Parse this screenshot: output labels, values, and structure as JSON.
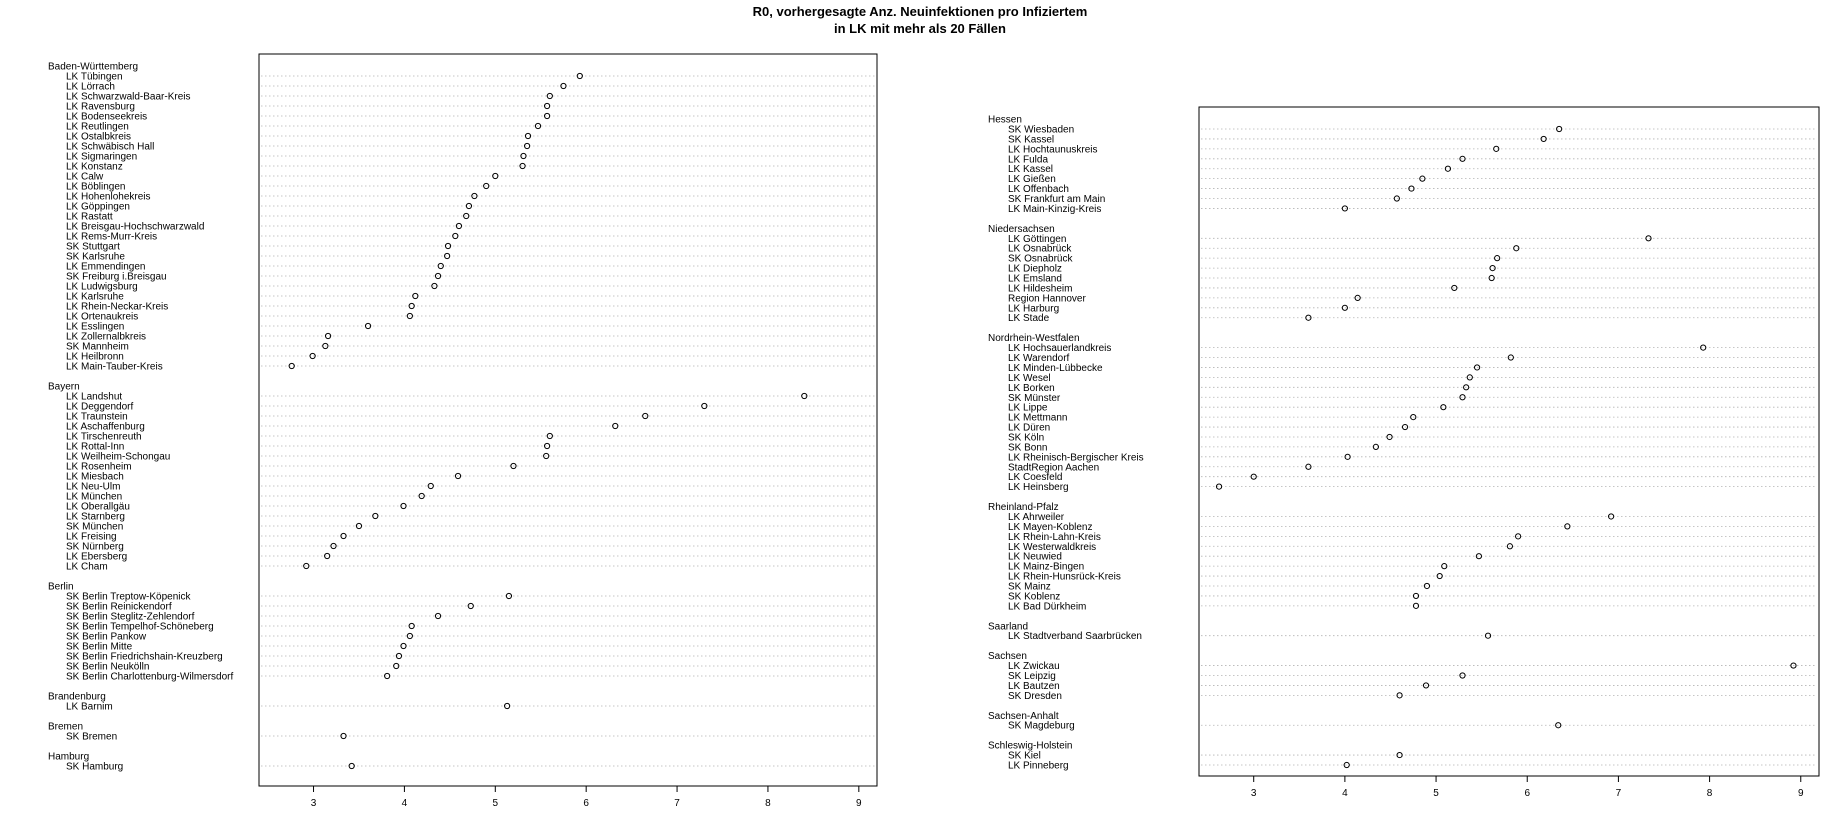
{
  "title_lines": [
    "R0, vorhergesagte Anz. Neuinfektionen pro Infiziertem",
    "in LK mit mehr als 20 Fällen"
  ],
  "chart_data": [
    {
      "type": "dotchart",
      "xlim": [
        2.4,
        9.2
      ],
      "xticks": [
        3,
        4,
        5,
        6,
        7,
        8,
        9
      ],
      "grid": "dotted horizontal lines",
      "groups": [
        {
          "name": "Baden-Württemberg",
          "items": [
            {
              "label": "LK Tübingen",
              "value": 5.93
            },
            {
              "label": "LK Lörrach",
              "value": 5.75
            },
            {
              "label": "LK Schwarzwald-Baar-Kreis",
              "value": 5.6
            },
            {
              "label": "LK Ravensburg",
              "value": 5.57
            },
            {
              "label": "LK Bodenseekreis",
              "value": 5.57
            },
            {
              "label": "LK Reutlingen",
              "value": 5.47
            },
            {
              "label": "LK Ostalbkreis",
              "value": 5.36
            },
            {
              "label": "LK Schwäbisch Hall",
              "value": 5.35
            },
            {
              "label": "LK Sigmaringen",
              "value": 5.31
            },
            {
              "label": "LK Konstanz",
              "value": 5.3
            },
            {
              "label": "LK Calw",
              "value": 5.0
            },
            {
              "label": "LK Böblingen",
              "value": 4.9
            },
            {
              "label": "LK Hohenlohekreis",
              "value": 4.77
            },
            {
              "label": "LK Göppingen",
              "value": 4.71
            },
            {
              "label": "LK Rastatt",
              "value": 4.68
            },
            {
              "label": "LK Breisgau-Hochschwarzwald",
              "value": 4.6
            },
            {
              "label": "LK Rems-Murr-Kreis",
              "value": 4.56
            },
            {
              "label": "SK Stuttgart",
              "value": 4.48
            },
            {
              "label": "SK Karlsruhe",
              "value": 4.47
            },
            {
              "label": "LK Emmendingen",
              "value": 4.4
            },
            {
              "label": "SK Freiburg i.Breisgau",
              "value": 4.37
            },
            {
              "label": "LK Ludwigsburg",
              "value": 4.33
            },
            {
              "label": "LK Karlsruhe",
              "value": 4.12
            },
            {
              "label": "LK Rhein-Neckar-Kreis",
              "value": 4.08
            },
            {
              "label": "LK Ortenaukreis",
              "value": 4.06
            },
            {
              "label": "LK Esslingen",
              "value": 3.6
            },
            {
              "label": "LK Zollernalbkreis",
              "value": 3.16
            },
            {
              "label": "SK Mannheim",
              "value": 3.13
            },
            {
              "label": "LK Heilbronn",
              "value": 2.99
            },
            {
              "label": "LK Main-Tauber-Kreis",
              "value": 2.76
            }
          ]
        },
        {
          "name": "Bayern",
          "items": [
            {
              "label": "LK Landshut",
              "value": 8.4
            },
            {
              "label": "LK Deggendorf",
              "value": 7.3
            },
            {
              "label": "LK Traunstein",
              "value": 6.65
            },
            {
              "label": "LK Aschaffenburg",
              "value": 6.32
            },
            {
              "label": "LK Tirschenreuth",
              "value": 5.6
            },
            {
              "label": "LK Rottal-Inn",
              "value": 5.57
            },
            {
              "label": "LK Weilheim-Schongau",
              "value": 5.56
            },
            {
              "label": "LK Rosenheim",
              "value": 5.2
            },
            {
              "label": "LK Miesbach",
              "value": 4.59
            },
            {
              "label": "LK Neu-Ulm",
              "value": 4.29
            },
            {
              "label": "LK München",
              "value": 4.19
            },
            {
              "label": "LK Oberallgäu",
              "value": 3.99
            },
            {
              "label": "LK Starnberg",
              "value": 3.68
            },
            {
              "label": "SK München",
              "value": 3.5
            },
            {
              "label": "LK Freising",
              "value": 3.33
            },
            {
              "label": "SK Nürnberg",
              "value": 3.22
            },
            {
              "label": "LK Ebersberg",
              "value": 3.15
            },
            {
              "label": "LK Cham",
              "value": 2.92
            }
          ]
        },
        {
          "name": "Berlin",
          "items": [
            {
              "label": "SK Berlin Treptow-Köpenick",
              "value": 5.15
            },
            {
              "label": "SK Berlin Reinickendorf",
              "value": 4.73
            },
            {
              "label": "SK Berlin Steglitz-Zehlendorf",
              "value": 4.37
            },
            {
              "label": "SK Berlin Tempelhof-Schöneberg",
              "value": 4.08
            },
            {
              "label": "SK Berlin Pankow",
              "value": 4.06
            },
            {
              "label": "SK Berlin Mitte",
              "value": 3.99
            },
            {
              "label": "SK Berlin Friedrichshain-Kreuzberg",
              "value": 3.94
            },
            {
              "label": "SK Berlin Neukölln",
              "value": 3.91
            },
            {
              "label": "SK Berlin Charlottenburg-Wilmersdorf",
              "value": 3.81
            }
          ]
        },
        {
          "name": "Brandenburg",
          "items": [
            {
              "label": "LK Barnim",
              "value": 5.13
            }
          ]
        },
        {
          "name": "Bremen",
          "items": [
            {
              "label": "SK Bremen",
              "value": 3.33
            }
          ]
        },
        {
          "name": "Hamburg",
          "items": [
            {
              "label": "SK Hamburg",
              "value": 3.42
            }
          ]
        }
      ]
    },
    {
      "type": "dotchart",
      "xlim": [
        2.4,
        9.2
      ],
      "xticks": [
        3,
        4,
        5,
        6,
        7,
        8,
        9
      ],
      "grid": "dotted horizontal lines",
      "groups": [
        {
          "name": "Hessen",
          "items": [
            {
              "label": "SK Wiesbaden",
              "value": 6.35
            },
            {
              "label": "SK Kassel",
              "value": 6.18
            },
            {
              "label": "LK Hochtaunuskreis",
              "value": 5.66
            },
            {
              "label": "LK Fulda",
              "value": 5.29
            },
            {
              "label": "LK Kassel",
              "value": 5.13
            },
            {
              "label": "LK Gießen",
              "value": 4.85
            },
            {
              "label": "LK Offenbach",
              "value": 4.73
            },
            {
              "label": "SK Frankfurt am Main",
              "value": 4.57
            },
            {
              "label": "LK Main-Kinzig-Kreis",
              "value": 4.0
            }
          ]
        },
        {
          "name": "Niedersachsen",
          "items": [
            {
              "label": "LK Göttingen",
              "value": 7.33
            },
            {
              "label": "LK Osnabrück",
              "value": 5.88
            },
            {
              "label": "SK Osnabrück",
              "value": 5.67
            },
            {
              "label": "LK Diepholz",
              "value": 5.62
            },
            {
              "label": "LK Emsland",
              "value": 5.61
            },
            {
              "label": "LK Hildesheim",
              "value": 5.2
            },
            {
              "label": "Region Hannover",
              "value": 4.14
            },
            {
              "label": "LK Harburg",
              "value": 4.0
            },
            {
              "label": "LK Stade",
              "value": 3.6
            }
          ]
        },
        {
          "name": "Nordrhein-Westfalen",
          "items": [
            {
              "label": "LK Hochsauerlandkreis",
              "value": 7.93
            },
            {
              "label": "LK Warendorf",
              "value": 5.82
            },
            {
              "label": "LK Minden-Lübbecke",
              "value": 5.45
            },
            {
              "label": "LK Wesel",
              "value": 5.37
            },
            {
              "label": "LK Borken",
              "value": 5.33
            },
            {
              "label": "SK Münster",
              "value": 5.29
            },
            {
              "label": "LK Lippe",
              "value": 5.08
            },
            {
              "label": "LK Mettmann",
              "value": 4.75
            },
            {
              "label": "LK Düren",
              "value": 4.66
            },
            {
              "label": "SK Köln",
              "value": 4.49
            },
            {
              "label": "SK Bonn",
              "value": 4.34
            },
            {
              "label": "LK Rheinisch-Bergischer Kreis",
              "value": 4.03
            },
            {
              "label": "StadtRegion Aachen",
              "value": 3.6
            },
            {
              "label": "LK Coesfeld",
              "value": 3.0
            },
            {
              "label": "LK Heinsberg",
              "value": 2.62
            }
          ]
        },
        {
          "name": "Rheinland-Pfalz",
          "items": [
            {
              "label": "LK Ahrweiler",
              "value": 6.92
            },
            {
              "label": "LK Mayen-Koblenz",
              "value": 6.44
            },
            {
              "label": "LK Rhein-Lahn-Kreis",
              "value": 5.9
            },
            {
              "label": "LK Westerwaldkreis",
              "value": 5.81
            },
            {
              "label": "LK Neuwied",
              "value": 5.47
            },
            {
              "label": "LK Mainz-Bingen",
              "value": 5.09
            },
            {
              "label": "LK Rhein-Hunsrück-Kreis",
              "value": 5.04
            },
            {
              "label": "SK Mainz",
              "value": 4.9
            },
            {
              "label": "SK Koblenz",
              "value": 4.78
            },
            {
              "label": "LK Bad Dürkheim",
              "value": 4.78
            }
          ]
        },
        {
          "name": "Saarland",
          "items": [
            {
              "label": "LK Stadtverband Saarbrücken",
              "value": 5.57
            }
          ]
        },
        {
          "name": "Sachsen",
          "items": [
            {
              "label": "LK Zwickau",
              "value": 8.92
            },
            {
              "label": "SK Leipzig",
              "value": 5.29
            },
            {
              "label": "LK Bautzen",
              "value": 4.89
            },
            {
              "label": "SK Dresden",
              "value": 4.6
            }
          ]
        },
        {
          "name": "Sachsen-Anhalt",
          "items": [
            {
              "label": "SK Magdeburg",
              "value": 6.34
            }
          ]
        },
        {
          "name": "Schleswig-Holstein",
          "items": [
            {
              "label": "SK Kiel",
              "value": 4.6
            },
            {
              "label": "LK Pinneberg",
              "value": 4.02
            }
          ]
        }
      ]
    }
  ]
}
